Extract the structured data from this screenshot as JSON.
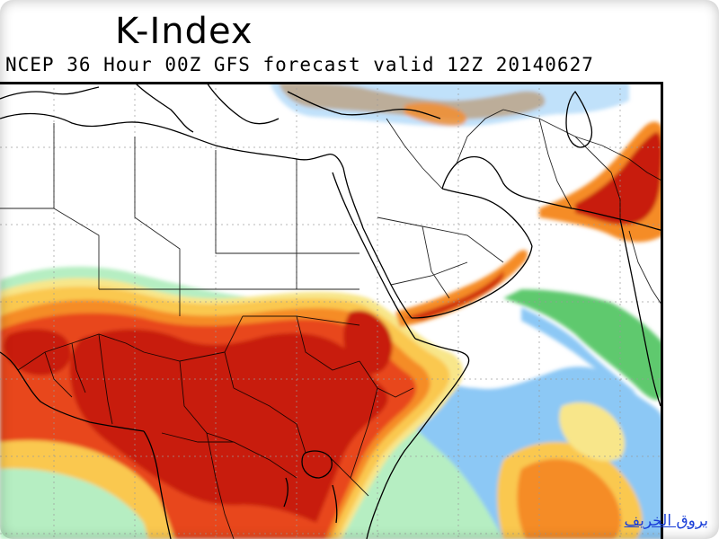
{
  "title": "K-Index",
  "subtitle": "NCEP 36 Hour 00Z GFS forecast valid 12Z 20140627",
  "watermark": "بروق الخريف",
  "colors": {
    "dark_red": "#c81e0a",
    "orange_red": "#e8461e",
    "orange": "#f58c28",
    "light_orange": "#fac850",
    "yellow": "#f8e68a",
    "light_green": "#b6eec2",
    "green": "#5ec96e",
    "light_blue": "#8cc8f5",
    "blue": "#3c8cf0"
  },
  "map": {
    "region": "Africa and Middle East",
    "projection": "cylindrical",
    "gridlines": "dotted",
    "field": "K-Index"
  }
}
